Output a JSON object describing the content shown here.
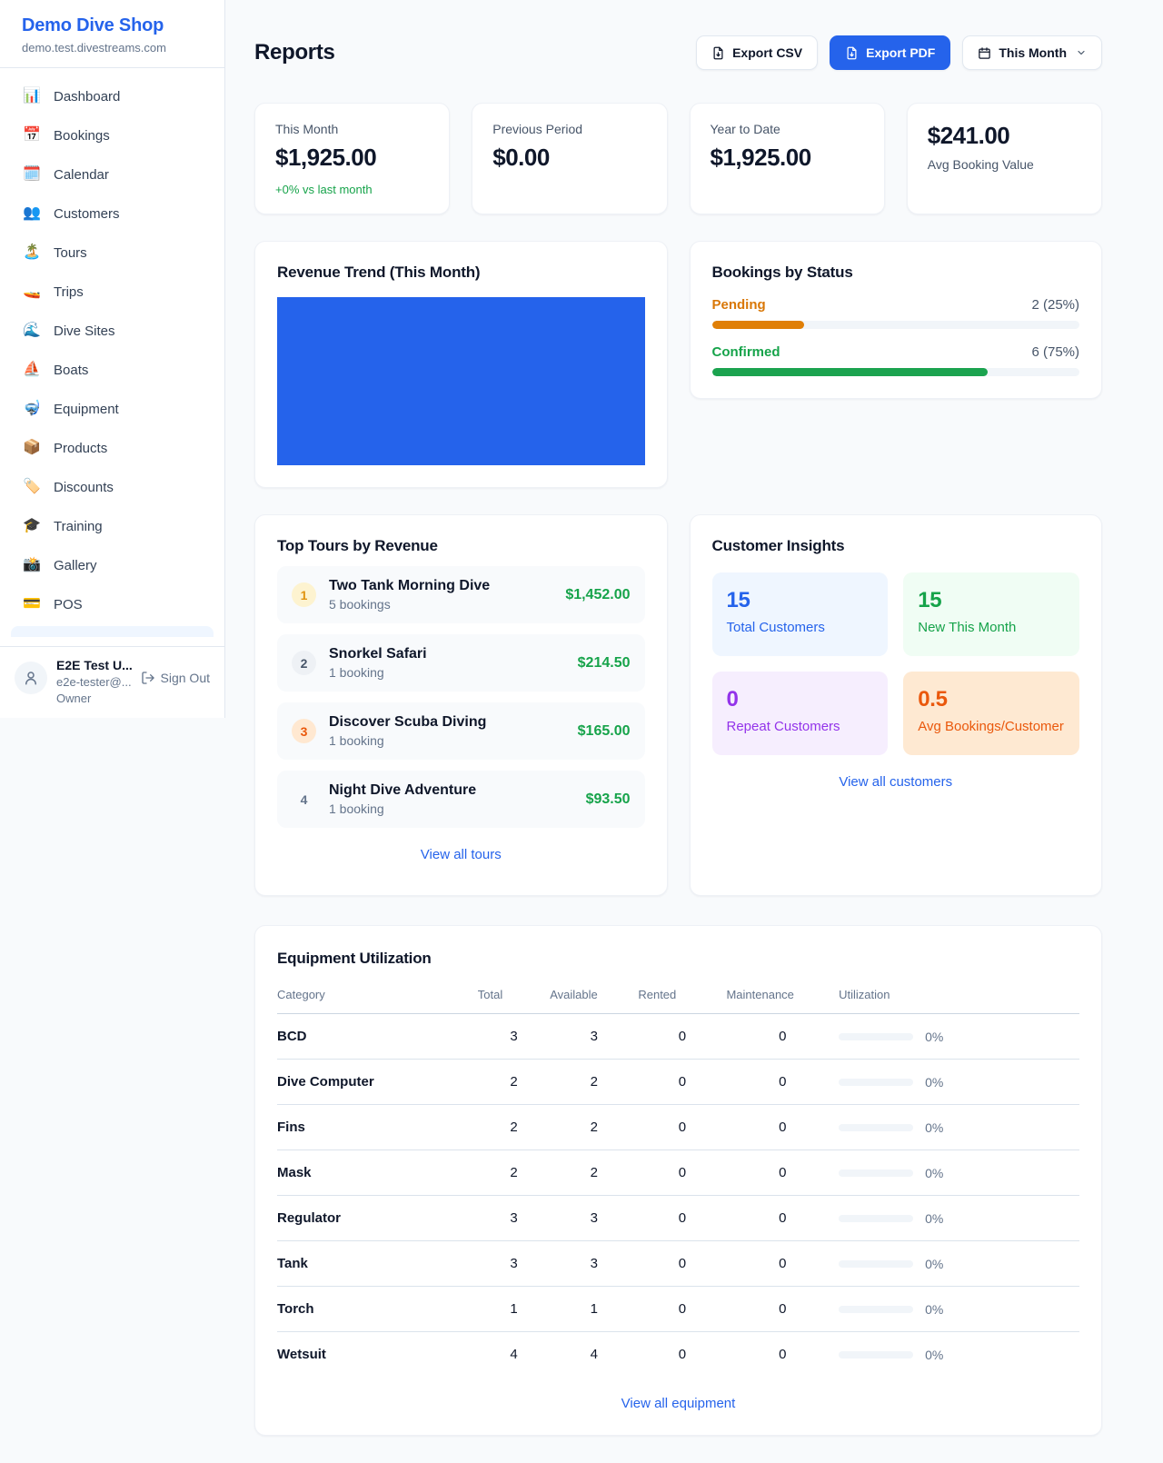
{
  "colors": {
    "accent_blue": "#2563eb",
    "success_green": "#16a34a",
    "pending_orange": "#d97706",
    "maintenance_orange": "#ea580c",
    "repeat_purple": "#9333ea",
    "chart_fill": "#2563eb"
  },
  "sidebar": {
    "brand_name": "Demo Dive Shop",
    "brand_domain": "demo.test.divestreams.com",
    "items": [
      {
        "icon": "bar-chart-icon",
        "glyph": "📊",
        "label": "Dashboard"
      },
      {
        "icon": "calendar-icon",
        "glyph": "📅",
        "label": "Bookings"
      },
      {
        "icon": "calendar-pad-icon",
        "glyph": "🗓️",
        "label": "Calendar"
      },
      {
        "icon": "people-icon",
        "glyph": "👥",
        "label": "Customers"
      },
      {
        "icon": "island-icon",
        "glyph": "🏝️",
        "label": "Tours"
      },
      {
        "icon": "speedboat-icon",
        "glyph": "🚤",
        "label": "Trips"
      },
      {
        "icon": "wave-icon",
        "glyph": "🌊",
        "label": "Dive Sites"
      },
      {
        "icon": "sailboat-icon",
        "glyph": "⛵",
        "label": "Boats"
      },
      {
        "icon": "dive-mask-icon",
        "glyph": "🤿",
        "label": "Equipment"
      },
      {
        "icon": "package-icon",
        "glyph": "📦",
        "label": "Products"
      },
      {
        "icon": "tag-icon",
        "glyph": "🏷️",
        "label": "Discounts"
      },
      {
        "icon": "grad-cap-icon",
        "glyph": "🎓",
        "label": "Training"
      },
      {
        "icon": "camera-icon",
        "glyph": "📸",
        "label": "Gallery"
      },
      {
        "icon": "credit-card-icon",
        "glyph": "💳",
        "label": "POS"
      }
    ],
    "user": {
      "name": "E2E Test U...",
      "email": "e2e-tester@...",
      "role": "Owner",
      "sign_out_label": "Sign Out"
    }
  },
  "header": {
    "title": "Reports",
    "export_csv_label": "Export CSV",
    "export_pdf_label": "Export PDF",
    "period_label": "This Month"
  },
  "stats": {
    "this_month": {
      "label": "This Month",
      "value": "$1,925.00",
      "delta": "+0% vs last month"
    },
    "previous_period": {
      "label": "Previous Period",
      "value": "$0.00"
    },
    "year_to_date": {
      "label": "Year to Date",
      "value": "$1,925.00"
    },
    "avg_booking": {
      "value": "$241.00",
      "label": "Avg Booking Value"
    }
  },
  "revenue_trend": {
    "title": "Revenue Trend (This Month)"
  },
  "bookings_by_status": {
    "title": "Bookings by Status",
    "rows": [
      {
        "label": "Pending",
        "count": "2 (25%)",
        "pct": 25
      },
      {
        "label": "Confirmed",
        "count": "6 (75%)",
        "pct": 75
      }
    ]
  },
  "top_tours": {
    "title": "Top Tours by Revenue",
    "items": [
      {
        "rank": "1",
        "name": "Two Tank Morning Dive",
        "bookings": "5 bookings",
        "amount": "$1,452.00"
      },
      {
        "rank": "2",
        "name": "Snorkel Safari",
        "bookings": "1 booking",
        "amount": "$214.50"
      },
      {
        "rank": "3",
        "name": "Discover Scuba Diving",
        "bookings": "1 booking",
        "amount": "$165.00"
      },
      {
        "rank": "4",
        "name": "Night Dive Adventure",
        "bookings": "1 booking",
        "amount": "$93.50"
      }
    ],
    "view_all_label": "View all tours"
  },
  "customer_insights": {
    "title": "Customer Insights",
    "tiles": [
      {
        "value": "15",
        "label": "Total Customers"
      },
      {
        "value": "15",
        "label": "New This Month"
      },
      {
        "value": "0",
        "label": "Repeat Customers"
      },
      {
        "value": "0.5",
        "label": "Avg Bookings/Customer"
      }
    ],
    "view_all_label": "View all customers"
  },
  "equipment": {
    "title": "Equipment Utilization",
    "columns": [
      "Category",
      "Total",
      "Available",
      "Rented",
      "Maintenance",
      "Utilization"
    ],
    "rows": [
      {
        "category": "BCD",
        "total": "3",
        "available": "3",
        "rented": "0",
        "maintenance": "0",
        "utilization": "0%"
      },
      {
        "category": "Dive Computer",
        "total": "2",
        "available": "2",
        "rented": "0",
        "maintenance": "0",
        "utilization": "0%"
      },
      {
        "category": "Fins",
        "total": "2",
        "available": "2",
        "rented": "0",
        "maintenance": "0",
        "utilization": "0%"
      },
      {
        "category": "Mask",
        "total": "2",
        "available": "2",
        "rented": "0",
        "maintenance": "0",
        "utilization": "0%"
      },
      {
        "category": "Regulator",
        "total": "3",
        "available": "3",
        "rented": "0",
        "maintenance": "0",
        "utilization": "0%"
      },
      {
        "category": "Tank",
        "total": "3",
        "available": "3",
        "rented": "0",
        "maintenance": "0",
        "utilization": "0%"
      },
      {
        "category": "Torch",
        "total": "1",
        "available": "1",
        "rented": "0",
        "maintenance": "0",
        "utilization": "0%"
      },
      {
        "category": "Wetsuit",
        "total": "4",
        "available": "4",
        "rented": "0",
        "maintenance": "0",
        "utilization": "0%"
      }
    ],
    "view_all_label": "View all equipment"
  }
}
